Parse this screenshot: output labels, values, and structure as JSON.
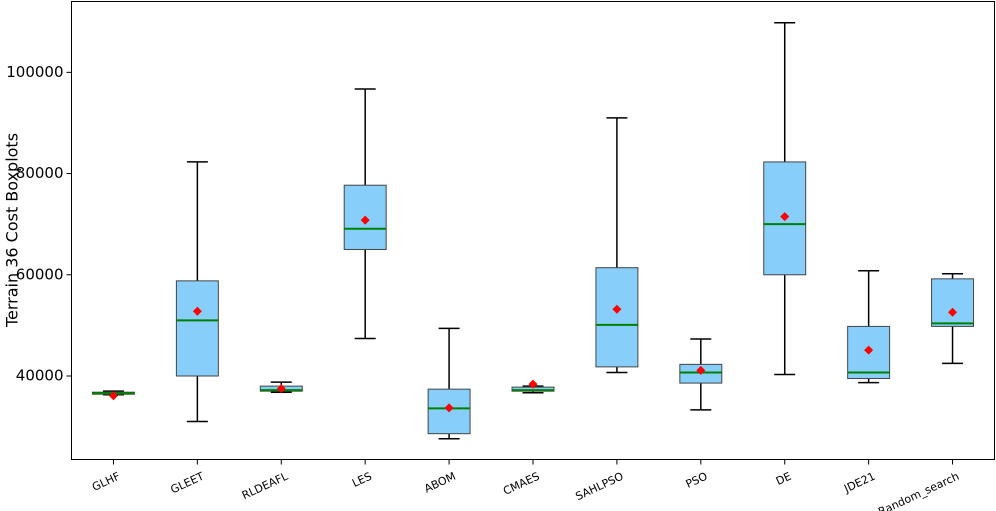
{
  "chart_data": {
    "type": "boxplot",
    "title": "",
    "xlabel": "",
    "ylabel": "Terrain 36 Cost Boxplots",
    "ylim": [
      23500,
      114000
    ],
    "yticks": [
      40000,
      60000,
      80000,
      100000
    ],
    "ytick_labels": [
      "40000",
      "60000",
      "80000",
      "100000"
    ],
    "grid": false,
    "colors": {
      "box_fill": "#87cefa",
      "box_edge": "#444444",
      "median": "#008000",
      "mean_marker": "#ff0000",
      "whisker": "#000000"
    },
    "categories": [
      "GLHF",
      "GLEET",
      "RLDEAFL",
      "LES",
      "ABOM",
      "CMAES",
      "SAHLPSO",
      "PSO",
      "DE",
      "JDE21",
      "Random_search"
    ],
    "boxes": [
      {
        "name": "GLHF",
        "whislo": 36300,
        "q1": 36400,
        "med": 36600,
        "q3": 36800,
        "whishi": 37000,
        "mean": 36100
      },
      {
        "name": "GLEET",
        "whislo": 31000,
        "q1": 40000,
        "med": 51000,
        "q3": 58800,
        "whishi": 82300,
        "mean": 52800
      },
      {
        "name": "RLDEAFL",
        "whislo": 36800,
        "q1": 37000,
        "med": 37200,
        "q3": 38000,
        "whishi": 38800,
        "mean": 37500
      },
      {
        "name": "LES",
        "whislo": 47400,
        "q1": 65000,
        "med": 69100,
        "q3": 77700,
        "whishi": 96700,
        "mean": 70800
      },
      {
        "name": "ABOM",
        "whislo": 27600,
        "q1": 28600,
        "med": 33600,
        "q3": 37400,
        "whishi": 49400,
        "mean": 33700
      },
      {
        "name": "CMAES",
        "whislo": 36700,
        "q1": 37000,
        "med": 37200,
        "q3": 37800,
        "whishi": 38000,
        "mean": 38400
      },
      {
        "name": "SAHLPSO",
        "whislo": 40700,
        "q1": 41800,
        "med": 50100,
        "q3": 61400,
        "whishi": 91000,
        "mean": 53200
      },
      {
        "name": "PSO",
        "whislo": 33300,
        "q1": 38600,
        "med": 40700,
        "q3": 42300,
        "whishi": 47300,
        "mean": 41100
      },
      {
        "name": "DE",
        "whislo": 40300,
        "q1": 60000,
        "med": 70000,
        "q3": 82300,
        "whishi": 109800,
        "mean": 71500
      },
      {
        "name": "JDE21",
        "whislo": 38700,
        "q1": 39500,
        "med": 40700,
        "q3": 49800,
        "whishi": 60800,
        "mean": 45100
      },
      {
        "name": "Random_search",
        "whislo": 42500,
        "q1": 49800,
        "med": 50400,
        "q3": 59200,
        "whishi": 60200,
        "mean": 52600
      }
    ]
  }
}
